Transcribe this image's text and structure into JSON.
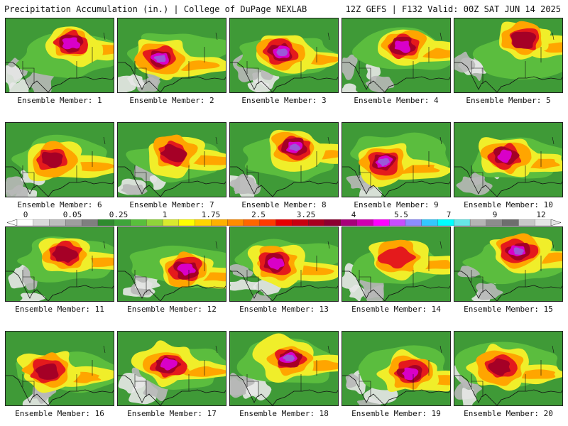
{
  "header": {
    "title": "Precipitation Accumulation (in.) | College of DuPage NEXLAB",
    "run_info": "12Z GEFS | F132 Valid: 00Z SAT JUN 14 2025"
  },
  "colorbar": {
    "labels": [
      "0",
      "0.05",
      "0.25",
      "1",
      "1.75",
      "2.5",
      "3.25",
      "4",
      "5.5",
      "7",
      "9",
      "12"
    ],
    "colors": [
      "#ffffff",
      "#d9d9d9",
      "#bdbdbd",
      "#9e9e9e",
      "#7f7f7f",
      "#2e8b2e",
      "#3ea53a",
      "#58bf3c",
      "#8fd43a",
      "#d8ea2e",
      "#ffff00",
      "#ffd500",
      "#ffb000",
      "#ff8c00",
      "#ff6600",
      "#ff3a00",
      "#e60000",
      "#c80010",
      "#a8001e",
      "#8c0030",
      "#a8007a",
      "#d000b0",
      "#ff00ff",
      "#c84dff",
      "#8c8cff",
      "#33c8ff",
      "#00ffff",
      "#66e6e6",
      "#b4b4b4",
      "#8c8c8c",
      "#6e6e6e",
      "#c8c8c8",
      "#e6e6e6"
    ]
  },
  "colors": {
    "green": "#3f9a37",
    "light_green": "#5bbd3e",
    "yellow": "#f0ee2a",
    "orange": "#ffa500",
    "red": "#e41a1c",
    "dark_red": "#a50026",
    "magenta": "#d900c8",
    "purple": "#9b59d8",
    "cyan": "#5ee8e8",
    "gray": "#b8b8b8",
    "white_gray": "#e8e8e8",
    "border": "#111111"
  },
  "members": [
    {
      "label": "Ensemble Member: 1",
      "intensity": 0.7
    },
    {
      "label": "Ensemble Member: 2",
      "intensity": 0.8
    },
    {
      "label": "Ensemble Member: 3",
      "intensity": 0.85
    },
    {
      "label": "Ensemble Member: 4",
      "intensity": 0.78
    },
    {
      "label": "Ensemble Member: 5",
      "intensity": 0.6
    },
    {
      "label": "Ensemble Member: 6",
      "intensity": 0.55
    },
    {
      "label": "Ensemble Member: 7",
      "intensity": 0.6
    },
    {
      "label": "Ensemble Member: 8",
      "intensity": 0.85
    },
    {
      "label": "Ensemble Member: 9",
      "intensity": 0.9
    },
    {
      "label": "Ensemble Member: 10",
      "intensity": 0.65
    },
    {
      "label": "Ensemble Member: 11",
      "intensity": 0.55
    },
    {
      "label": "Ensemble Member: 12",
      "intensity": 0.7
    },
    {
      "label": "Ensemble Member: 13",
      "intensity": 0.75
    },
    {
      "label": "Ensemble Member: 14",
      "intensity": 0.4
    },
    {
      "label": "Ensemble Member: 15",
      "intensity": 0.85
    },
    {
      "label": "Ensemble Member: 16",
      "intensity": 0.55
    },
    {
      "label": "Ensemble Member: 17",
      "intensity": 0.72
    },
    {
      "label": "Ensemble Member: 18",
      "intensity": 0.8
    },
    {
      "label": "Ensemble Member: 19",
      "intensity": 0.65
    },
    {
      "label": "Ensemble Member: 20",
      "intensity": 0.5
    }
  ]
}
